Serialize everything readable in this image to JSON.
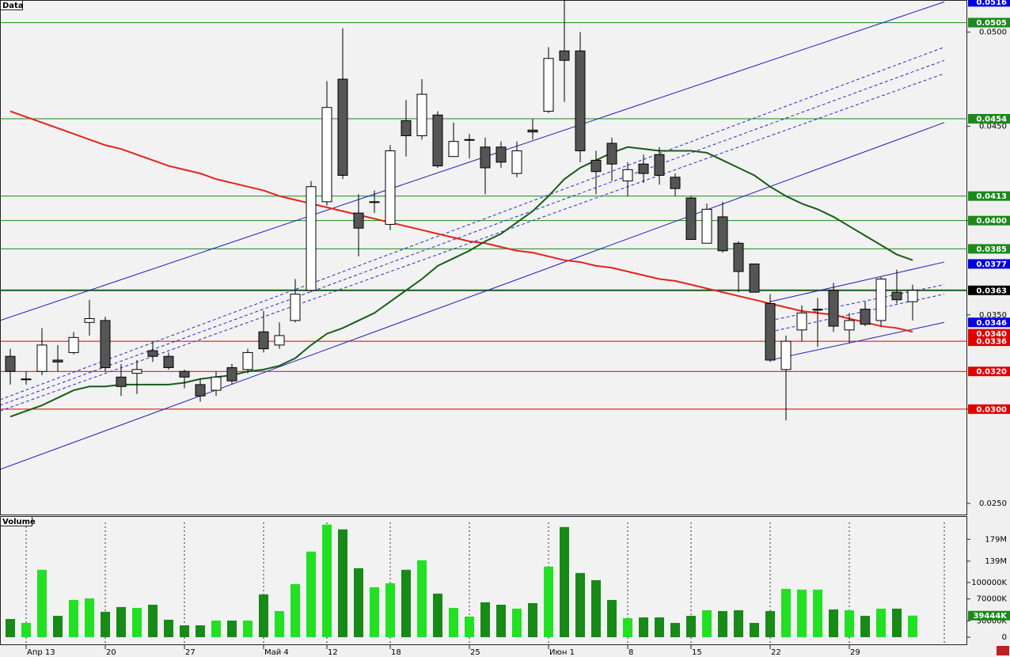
{
  "chart_data": [
    {
      "type": "candlestick",
      "title": "Data",
      "categories": [
        null,
        "Апр 13",
        null,
        null,
        null,
        null,
        "20",
        null,
        null,
        null,
        null,
        "27",
        null,
        null,
        null,
        null,
        "Май 4",
        null,
        null,
        null,
        "12",
        null,
        null,
        null,
        "18",
        null,
        null,
        null,
        null,
        "25",
        null,
        null,
        null,
        null,
        "Июн 1",
        null,
        null,
        null,
        null,
        "8",
        null,
        null,
        null,
        "15",
        null,
        null,
        null,
        null,
        "22",
        null,
        null,
        null,
        null,
        "29",
        null,
        null,
        null,
        null
      ],
      "open": [
        0.0328,
        0.0316,
        0.032,
        0.0326,
        0.033,
        0.0346,
        0.0347,
        0.0317,
        0.0319,
        0.0331,
        0.0328,
        0.032,
        0.0313,
        0.031,
        0.0322,
        0.0321,
        0.0341,
        0.0334,
        0.0347,
        0.0363,
        0.041,
        0.0475,
        0.0404,
        0.041,
        0.0398,
        0.0453,
        0.0445,
        0.0456,
        0.0434,
        0.0443,
        0.0439,
        0.0439,
        0.0425,
        0.0448,
        0.0458,
        0.049,
        0.049,
        0.0432,
        0.0441,
        0.0421,
        0.043,
        0.0435,
        0.0423,
        0.0412,
        0.0388,
        0.0402,
        0.0388,
        0.0377,
        0.0356,
        0.0321,
        0.0342,
        0.0353,
        0.0363,
        0.0342,
        0.0353,
        0.0347,
        0.0362,
        0.0357
      ],
      "high": [
        0.0332,
        0.032,
        0.0343,
        0.0334,
        0.0341,
        0.0358,
        0.0349,
        0.0324,
        0.0326,
        0.0336,
        0.033,
        0.0321,
        0.0316,
        0.032,
        0.0324,
        0.0332,
        0.0352,
        0.0346,
        0.0369,
        0.0421,
        0.0474,
        0.0502,
        0.0414,
        0.0416,
        0.044,
        0.0464,
        0.0475,
        0.0458,
        0.0452,
        0.0446,
        0.0444,
        0.0442,
        0.0442,
        0.0454,
        0.0492,
        0.0517,
        0.05,
        0.0437,
        0.0444,
        0.0431,
        0.0435,
        0.0439,
        0.0425,
        0.0413,
        0.0409,
        0.041,
        0.0389,
        0.0377,
        0.0361,
        0.0339,
        0.0355,
        0.0359,
        0.0367,
        0.0351,
        0.0357,
        0.037,
        0.0374,
        0.0366
      ],
      "low": [
        0.0313,
        0.0313,
        0.0318,
        0.032,
        0.0329,
        0.0339,
        0.032,
        0.0307,
        0.0308,
        0.0325,
        0.0321,
        0.0311,
        0.0304,
        0.0307,
        0.0313,
        0.0319,
        0.033,
        0.0332,
        0.0346,
        0.0362,
        0.0408,
        0.0422,
        0.0381,
        0.0404,
        0.0395,
        0.0434,
        0.0443,
        0.0428,
        0.0434,
        0.0433,
        0.0414,
        0.0428,
        0.0423,
        0.0443,
        0.0457,
        0.0463,
        0.0431,
        0.0414,
        0.0421,
        0.0413,
        0.042,
        0.0419,
        0.0413,
        0.039,
        0.0388,
        0.0383,
        0.0362,
        0.0362,
        0.0325,
        0.0294,
        0.0336,
        0.0333,
        0.0341,
        0.0335,
        0.0344,
        0.0344,
        0.0356,
        0.0347
      ],
      "close": [
        0.032,
        0.0316,
        0.0334,
        0.0325,
        0.0338,
        0.0348,
        0.0322,
        0.0312,
        0.0321,
        0.0328,
        0.0322,
        0.0317,
        0.0307,
        0.0317,
        0.0315,
        0.033,
        0.0332,
        0.0339,
        0.0361,
        0.0418,
        0.046,
        0.0424,
        0.0396,
        0.041,
        0.0437,
        0.0445,
        0.0467,
        0.0429,
        0.0442,
        0.0443,
        0.0428,
        0.0431,
        0.0437,
        0.0447,
        0.0486,
        0.0485,
        0.0437,
        0.0426,
        0.043,
        0.0427,
        0.0425,
        0.0424,
        0.0417,
        0.039,
        0.0406,
        0.0384,
        0.0373,
        0.0362,
        0.0326,
        0.0336,
        0.0351,
        0.0353,
        0.0344,
        0.0347,
        0.0345,
        0.0369,
        0.0358,
        0.0363
      ],
      "up_color": "#ffffff",
      "down_color": "#555555",
      "lines": [
        {
          "color": "#e4221a",
          "values": [
            0.0458,
            0.0455,
            0.0452,
            0.0449,
            0.0446,
            0.0443,
            0.044,
            0.0438,
            0.0435,
            0.0432,
            0.0429,
            0.0427,
            0.0425,
            0.0422,
            0.042,
            0.0418,
            0.0416,
            0.0413,
            0.0411,
            0.0409,
            0.0407,
            0.0405,
            0.0403,
            0.0401,
            0.0399,
            0.0397,
            0.0395,
            0.0393,
            0.0391,
            0.0389,
            0.0388,
            0.0386,
            0.0384,
            0.0383,
            0.0381,
            0.0379,
            0.0378,
            0.0376,
            0.0375,
            0.0373,
            0.0371,
            0.0369,
            0.0368,
            0.0366,
            0.0364,
            0.0362,
            0.036,
            0.0358,
            0.0356,
            0.0354,
            0.0352,
            0.0351,
            0.035,
            0.0348,
            0.0346,
            0.0344,
            0.0343,
            0.0341
          ]
        },
        {
          "color": "#185c18",
          "values": [
            0.0296,
            0.0299,
            0.0302,
            0.0306,
            0.031,
            0.0312,
            0.0312,
            0.0313,
            0.0313,
            0.0313,
            0.0313,
            0.0314,
            0.0316,
            0.0317,
            0.0318,
            0.032,
            0.0321,
            0.0323,
            0.0327,
            0.0334,
            0.034,
            0.0343,
            0.0347,
            0.0351,
            0.0357,
            0.0363,
            0.0369,
            0.0376,
            0.038,
            0.0384,
            0.0389,
            0.0393,
            0.0399,
            0.0405,
            0.0413,
            0.0422,
            0.0428,
            0.0432,
            0.0436,
            0.0439,
            0.0438,
            0.0437,
            0.0437,
            0.0437,
            0.0436,
            0.0432,
            0.0428,
            0.0424,
            0.0418,
            0.0413,
            0.0409,
            0.0406,
            0.0402,
            0.0397,
            0.0392,
            0.0387,
            0.0382,
            0.0379
          ]
        }
      ],
      "trendlines": [
        {
          "x": [
            -0.65,
            59
          ],
          "y": [
            0.0347,
            0.0516
          ],
          "color": "#1c1cc0",
          "dashed": false
        },
        {
          "x": [
            -0.65,
            59
          ],
          "y": [
            0.0268,
            0.0452
          ],
          "color": "#1c1cc0",
          "dashed": false
        },
        {
          "x": [
            -0.65,
            59
          ],
          "y": [
            0.0305,
            0.0492
          ],
          "color": "#2a2ad0",
          "dashed": true
        },
        {
          "x": [
            -0.65,
            59
          ],
          "y": [
            0.0302,
            0.0485
          ],
          "color": "#2a2ad0",
          "dashed": true
        },
        {
          "x": [
            -0.65,
            59
          ],
          "y": [
            0.0299,
            0.0478
          ],
          "color": "#2a2ad0",
          "dashed": true
        },
        {
          "x": [
            48,
            59
          ],
          "y": [
            0.0357,
            0.0378
          ],
          "color": "#1c1cc0",
          "dashed": false
        },
        {
          "x": [
            48,
            59
          ],
          "y": [
            0.0326,
            0.0346
          ],
          "color": "#1c1cc0",
          "dashed": false
        },
        {
          "x": [
            48,
            59
          ],
          "y": [
            0.0347,
            0.0366
          ],
          "color": "#2a2ad0",
          "dashed": true
        },
        {
          "x": [
            48,
            59
          ],
          "y": [
            0.0341,
            0.0361
          ],
          "color": "#2a2ad0",
          "dashed": true
        }
      ],
      "levels": [
        {
          "value": 0.0516,
          "label": "0.0516",
          "color": "#0000e0",
          "line": false
        },
        {
          "value": 0.0505,
          "label": "0.0505",
          "color": "#1a8a1a",
          "line": true
        },
        {
          "value": 0.0454,
          "label": "0.0454",
          "color": "#0000e0",
          "line": false
        },
        {
          "value": 0.0454,
          "label": "0.0454",
          "color": "#1a8a1a",
          "line": true
        },
        {
          "value": 0.0413,
          "label": "0.0413",
          "color": "#1a8a1a",
          "line": true
        },
        {
          "value": 0.04,
          "label": "0.0400",
          "color": "#1a8a1a",
          "line": true
        },
        {
          "value": 0.0385,
          "label": "0.0385",
          "color": "#1a8a1a",
          "line": true
        },
        {
          "value": 0.0377,
          "label": "0.0377",
          "color": "#0000e0",
          "line": false
        },
        {
          "value": 0.0363,
          "label": "0.0363",
          "color": "#000000",
          "line": true
        },
        {
          "value": 0.0346,
          "label": "0.0346",
          "color": "#0000e0",
          "line": false
        },
        {
          "value": 0.034,
          "label": "0.0340",
          "color": "#e00000",
          "line": false
        },
        {
          "value": 0.0336,
          "label": "0.0336",
          "color": "#e00000",
          "line": true
        },
        {
          "value": 0.032,
          "label": "0.0320",
          "color": "#e00000",
          "line": true
        },
        {
          "value": 0.03,
          "label": "0.0300",
          "color": "#e00000",
          "line": true
        }
      ],
      "ylim": [
        0.02441,
        0.0517
      ],
      "yticks": [
        {
          "value": 0.025,
          "label": "0.0250"
        },
        {
          "value": 0.03,
          "label": "0.0300"
        },
        {
          "value": 0.035,
          "label": "0.0350"
        },
        {
          "value": 0.04,
          "label": "0.0400"
        },
        {
          "value": 0.045,
          "label": "0.0450"
        },
        {
          "value": 0.05,
          "label": "0.0500"
        }
      ]
    },
    {
      "type": "bar",
      "title": "Volume",
      "values": [
        33300000,
        26100000,
        123200000,
        39100000,
        68100000,
        71000000,
        46400000,
        55100000,
        53600000,
        59400000,
        31900000,
        21700000,
        21700000,
        30400000,
        30400000,
        30400000,
        78300000,
        47800000,
        97100000,
        156500000,
        205800000,
        197100000,
        126100000,
        91300000,
        98600000,
        123200000,
        140600000,
        79700000,
        53600000,
        37700000,
        63800000,
        59400000,
        52200000,
        62300000,
        129000000,
        201400000,
        117400000,
        104300000,
        68100000,
        34800000,
        36200000,
        36200000,
        26100000,
        39100000,
        49300000,
        47800000,
        49300000,
        26100000,
        47800000,
        88400000,
        87000000,
        87000000,
        50700000,
        49300000,
        39100000,
        52200000,
        52200000,
        39444000
      ],
      "up_color": "#22e022",
      "down_color": "#178a17",
      "last_label": {
        "value": 39444000,
        "label": "39444K",
        "color": "#1a8a1a"
      },
      "ylim": [
        0,
        217000000
      ],
      "yticks": [
        0,
        {
          "value": 30000000,
          "label": "30000K"
        },
        {
          "value": 70000000,
          "label": "70000K"
        },
        {
          "value": 100000000,
          "label": "100000K"
        },
        {
          "value": 139000000,
          "label": "139M"
        },
        {
          "value": 179000000,
          "label": "179M"
        }
      ]
    }
  ]
}
